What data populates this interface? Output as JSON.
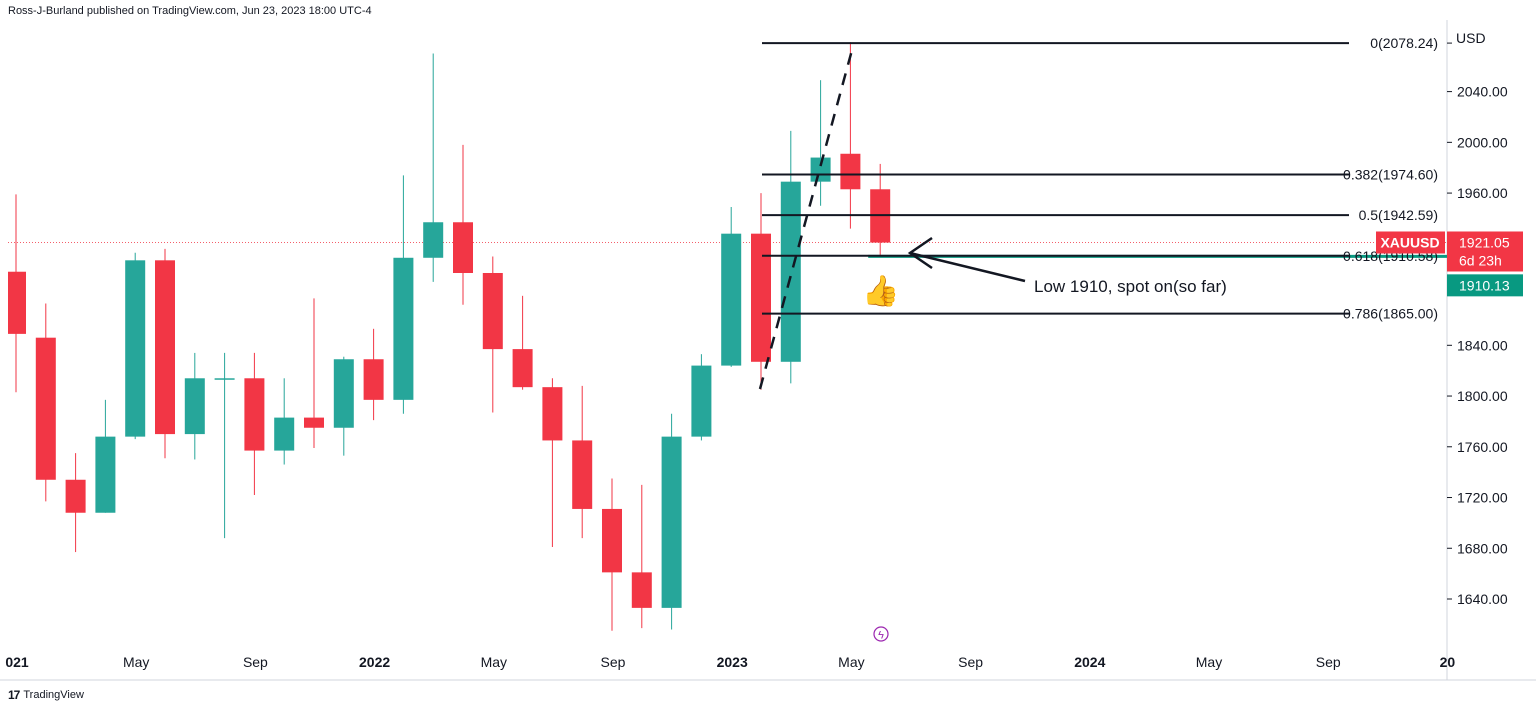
{
  "header": {
    "publisher": "Ross-J-Burland published on TradingView.com, Jun 23, 2023 18:00 UTC-4"
  },
  "footer": {
    "brand": "TradingView",
    "logo_glyph": "17"
  },
  "colors": {
    "up": "#26a69a",
    "down": "#f23645",
    "grid": "#e0e3eb",
    "level_green": "#089981",
    "text": "#131722"
  },
  "chart_data": {
    "type": "candlestick",
    "symbol": "XAUUSD",
    "interval": "monthly",
    "y_unit": "USD",
    "ylim": [
      1620,
      2085
    ],
    "y_ticks": [
      1640,
      1680,
      1720,
      1760,
      1800,
      1840,
      1880,
      1920,
      1960,
      2000,
      2040
    ],
    "y_tick_labels": [
      "1640.00",
      "1680.00",
      "1720.00",
      "1760.00",
      "1800.00",
      "1840.00",
      "",
      "",
      "1960.00",
      "2000.00",
      "2040.00"
    ],
    "x_axis_labels": [
      {
        "label": "021",
        "month_index": 0,
        "bold": true
      },
      {
        "label": "May",
        "month_index": 4
      },
      {
        "label": "Sep",
        "month_index": 8
      },
      {
        "label": "2022",
        "month_index": 12,
        "bold": true
      },
      {
        "label": "May",
        "month_index": 16
      },
      {
        "label": "Sep",
        "month_index": 20
      },
      {
        "label": "2023",
        "month_index": 24,
        "bold": true
      },
      {
        "label": "May",
        "month_index": 28
      },
      {
        "label": "Sep",
        "month_index": 32
      },
      {
        "label": "2024",
        "month_index": 36,
        "bold": true
      },
      {
        "label": "May",
        "month_index": 40
      },
      {
        "label": "Sep",
        "month_index": 44
      },
      {
        "label": "20",
        "month_index": 48,
        "bold": true
      }
    ],
    "candles": [
      {
        "date": "2021-01",
        "open": 1898,
        "high": 1959,
        "low": 1803,
        "close": 1849
      },
      {
        "date": "2021-02",
        "open": 1846,
        "high": 1873,
        "low": 1717,
        "close": 1734
      },
      {
        "date": "2021-03",
        "open": 1734,
        "high": 1755,
        "low": 1677,
        "close": 1708
      },
      {
        "date": "2021-04",
        "open": 1708,
        "high": 1797,
        "low": 1708,
        "close": 1768
      },
      {
        "date": "2021-05",
        "open": 1768,
        "high": 1913,
        "low": 1766,
        "close": 1907
      },
      {
        "date": "2021-06",
        "open": 1907,
        "high": 1916,
        "low": 1751,
        "close": 1770
      },
      {
        "date": "2021-07",
        "open": 1770,
        "high": 1834,
        "low": 1750,
        "close": 1814
      },
      {
        "date": "2021-08",
        "open": 1814,
        "high": 1834,
        "low": 1688,
        "close": 1814
      },
      {
        "date": "2021-09",
        "open": 1814,
        "high": 1834,
        "low": 1722,
        "close": 1757
      },
      {
        "date": "2021-10",
        "open": 1757,
        "high": 1814,
        "low": 1746,
        "close": 1783
      },
      {
        "date": "2021-11",
        "open": 1783,
        "high": 1877,
        "low": 1759,
        "close": 1775
      },
      {
        "date": "2021-12",
        "open": 1775,
        "high": 1831,
        "low": 1753,
        "close": 1829
      },
      {
        "date": "2022-01",
        "open": 1829,
        "high": 1853,
        "low": 1781,
        "close": 1797
      },
      {
        "date": "2022-02",
        "open": 1797,
        "high": 1974,
        "low": 1786,
        "close": 1909
      },
      {
        "date": "2022-03",
        "open": 1909,
        "high": 2070,
        "low": 1890,
        "close": 1937
      },
      {
        "date": "2022-04",
        "open": 1937,
        "high": 1998,
        "low": 1872,
        "close": 1897
      },
      {
        "date": "2022-05",
        "open": 1897,
        "high": 1910,
        "low": 1787,
        "close": 1837
      },
      {
        "date": "2022-06",
        "open": 1837,
        "high": 1879,
        "low": 1805,
        "close": 1807
      },
      {
        "date": "2022-07",
        "open": 1807,
        "high": 1814,
        "low": 1681,
        "close": 1765
      },
      {
        "date": "2022-08",
        "open": 1765,
        "high": 1808,
        "low": 1688,
        "close": 1711
      },
      {
        "date": "2022-09",
        "open": 1711,
        "high": 1735,
        "low": 1615,
        "close": 1661
      },
      {
        "date": "2022-10",
        "open": 1661,
        "high": 1730,
        "low": 1617,
        "close": 1633
      },
      {
        "date": "2022-11",
        "open": 1633,
        "high": 1786,
        "low": 1616,
        "close": 1768
      },
      {
        "date": "2022-12",
        "open": 1768,
        "high": 1833,
        "low": 1765,
        "close": 1824
      },
      {
        "date": "2023-01",
        "open": 1824,
        "high": 1949,
        "low": 1823,
        "close": 1928
      },
      {
        "date": "2023-02",
        "open": 1928,
        "high": 1960,
        "low": 1805,
        "close": 1827
      },
      {
        "date": "2023-03",
        "open": 1827,
        "high": 2009,
        "low": 1810,
        "close": 1969
      },
      {
        "date": "2023-04",
        "open": 1969,
        "high": 2049,
        "low": 1950,
        "close": 1988
      },
      {
        "date": "2023-05",
        "open": 1991,
        "high": 2079,
        "low": 1932,
        "close": 1963
      },
      {
        "date": "2023-06",
        "open": 1963,
        "high": 1983,
        "low": 1910,
        "close": 1921
      }
    ],
    "fib_levels": [
      {
        "label": "0(2078.24)",
        "ratio": 0,
        "value": 2078.24
      },
      {
        "label": "0.382(1974.60)",
        "ratio": 0.382,
        "value": 1974.6
      },
      {
        "label": "0.5(1942.59)",
        "ratio": 0.5,
        "value": 1942.59
      },
      {
        "label": "0.618(1910.58)",
        "ratio": 0.618,
        "value": 1910.58
      },
      {
        "label": "0.786(1865.00)",
        "ratio": 0.786,
        "value": 1865.0
      }
    ],
    "fib_start_month": 25,
    "trend_line": {
      "from": {
        "month_index": 25,
        "value": 1805
      },
      "to": {
        "month_index": 28,
        "value": 2078
      }
    },
    "current_price": {
      "symbol": "XAUUSD",
      "value": "1921.05",
      "countdown": "6d 23h",
      "price": 1921.05
    },
    "support_level": {
      "value": "1910.13",
      "price": 1910.13
    },
    "annotation": {
      "text": "Low 1910, spot on(so far)",
      "thumb_glyph": "👍",
      "arrow_tip": {
        "month_index": 30,
        "value": 1912
      }
    },
    "events_marker_glyph": "ϟ"
  }
}
